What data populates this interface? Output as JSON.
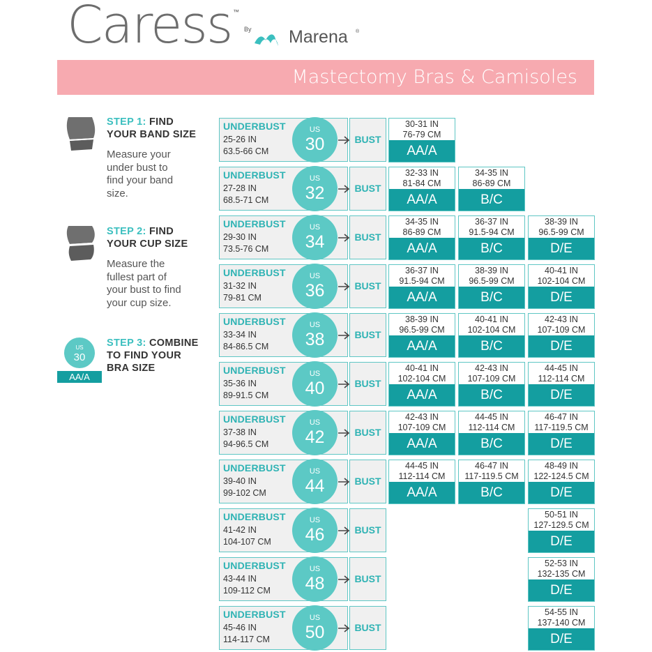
{
  "brand": {
    "name": "Caress",
    "tm": "™",
    "by": "By",
    "maker": "Marena",
    "maker_reg": "®"
  },
  "title": "Mastectomy Bras & Camisoles",
  "steps": [
    {
      "lead": "STEP 1:",
      "title_rest_1": "FIND",
      "title_rest_2": "YOUR BAND SIZE",
      "desc": [
        "Measure your",
        "under bust to",
        "find your band",
        "size."
      ]
    },
    {
      "lead": "STEP 2:",
      "title_rest_1": "FIND",
      "title_rest_2": "YOUR CUP SIZE",
      "desc": [
        "Measure the",
        "fullest part of",
        "your bust  to find",
        "your cup size."
      ]
    },
    {
      "lead": "STEP 3:",
      "title_rest_1": "COMBINE",
      "title_rest_2": "TO FIND YOUR",
      "title_rest_3": "BRA SIZE",
      "example": {
        "us": "US",
        "band": "30",
        "cup": "AA/A"
      }
    }
  ],
  "labels": {
    "underbust": "UNDERBUST",
    "us": "US",
    "bust": "BUST"
  },
  "rows": [
    {
      "band": "30",
      "ub_in": "25-26 IN",
      "ub_cm": "63.5-66 CM",
      "cups": [
        {
          "in": "30-31 IN",
          "cm": "76-79 CM",
          "size": "AA/A"
        }
      ]
    },
    {
      "band": "32",
      "ub_in": "27-28 IN",
      "ub_cm": "68.5-71 CM",
      "cups": [
        {
          "in": "32-33 IN",
          "cm": "81-84 CM",
          "size": "AA/A"
        },
        {
          "in": "34-35 IN",
          "cm": "86-89 CM",
          "size": "B/C"
        }
      ]
    },
    {
      "band": "34",
      "ub_in": "29-30 IN",
      "ub_cm": "73.5-76 CM",
      "cups": [
        {
          "in": "34-35 IN",
          "cm": "86-89 CM",
          "size": "AA/A"
        },
        {
          "in": "36-37 IN",
          "cm": "91.5-94 CM",
          "size": "B/C"
        },
        {
          "in": "38-39 IN",
          "cm": "96.5-99 CM",
          "size": "D/E"
        }
      ]
    },
    {
      "band": "36",
      "ub_in": "31-32 IN",
      "ub_cm": "79-81 CM",
      "cups": [
        {
          "in": "36-37 IN",
          "cm": "91.5-94 CM",
          "size": "AA/A"
        },
        {
          "in": "38-39 IN",
          "cm": "96.5-99 CM",
          "size": "B/C"
        },
        {
          "in": "40-41 IN",
          "cm": "102-104 CM",
          "size": "D/E"
        }
      ]
    },
    {
      "band": "38",
      "ub_in": "33-34 IN",
      "ub_cm": "84-86.5 CM",
      "cups": [
        {
          "in": "38-39 IN",
          "cm": "96.5-99 CM",
          "size": "AA/A"
        },
        {
          "in": "40-41 IN",
          "cm": "102-104 CM",
          "size": "B/C"
        },
        {
          "in": "42-43 IN",
          "cm": "107-109 CM",
          "size": "D/E"
        }
      ]
    },
    {
      "band": "40",
      "ub_in": "35-36 IN",
      "ub_cm": "89-91.5 CM",
      "cups": [
        {
          "in": "40-41 IN",
          "cm": "102-104 CM",
          "size": "AA/A"
        },
        {
          "in": "42-43 IN",
          "cm": "107-109 CM",
          "size": "B/C"
        },
        {
          "in": "44-45 IN",
          "cm": "112-114 CM",
          "size": "D/E"
        }
      ]
    },
    {
      "band": "42",
      "ub_in": "37-38 IN",
      "ub_cm": "94-96.5 CM",
      "cups": [
        {
          "in": "42-43 IN",
          "cm": "107-109 CM",
          "size": "AA/A"
        },
        {
          "in": "44-45 IN",
          "cm": "112-114 CM",
          "size": "B/C"
        },
        {
          "in": "46-47 IN",
          "cm": "117-119.5 CM",
          "size": "D/E"
        }
      ]
    },
    {
      "band": "44",
      "ub_in": "39-40 IN",
      "ub_cm": "99-102 CM",
      "cups": [
        {
          "in": "44-45 IN",
          "cm": "112-114 CM",
          "size": "AA/A"
        },
        {
          "in": "46-47 IN",
          "cm": "117-119.5 CM",
          "size": "B/C"
        },
        {
          "in": "48-49 IN",
          "cm": "122-124.5 CM",
          "size": "D/E"
        }
      ]
    },
    {
      "band": "46",
      "ub_in": "41-42 IN",
      "ub_cm": "104-107 CM",
      "cups": [
        null,
        null,
        {
          "in": "50-51 IN",
          "cm": "127-129.5 CM",
          "size": "D/E"
        }
      ]
    },
    {
      "band": "48",
      "ub_in": "43-44 IN",
      "ub_cm": "109-112 CM",
      "cups": [
        null,
        null,
        {
          "in": "52-53 IN",
          "cm": "132-135 CM",
          "size": "D/E"
        }
      ]
    },
    {
      "band": "50",
      "ub_in": "45-46 IN",
      "ub_cm": "114-117 CM",
      "cups": [
        null,
        null,
        {
          "in": "54-55 IN",
          "cm": "137-140 CM",
          "size": "D/E"
        }
      ]
    }
  ],
  "colors": {
    "teal": "#5cc9c5",
    "dark_teal": "#149ea0",
    "pink": "#f7aab0"
  }
}
